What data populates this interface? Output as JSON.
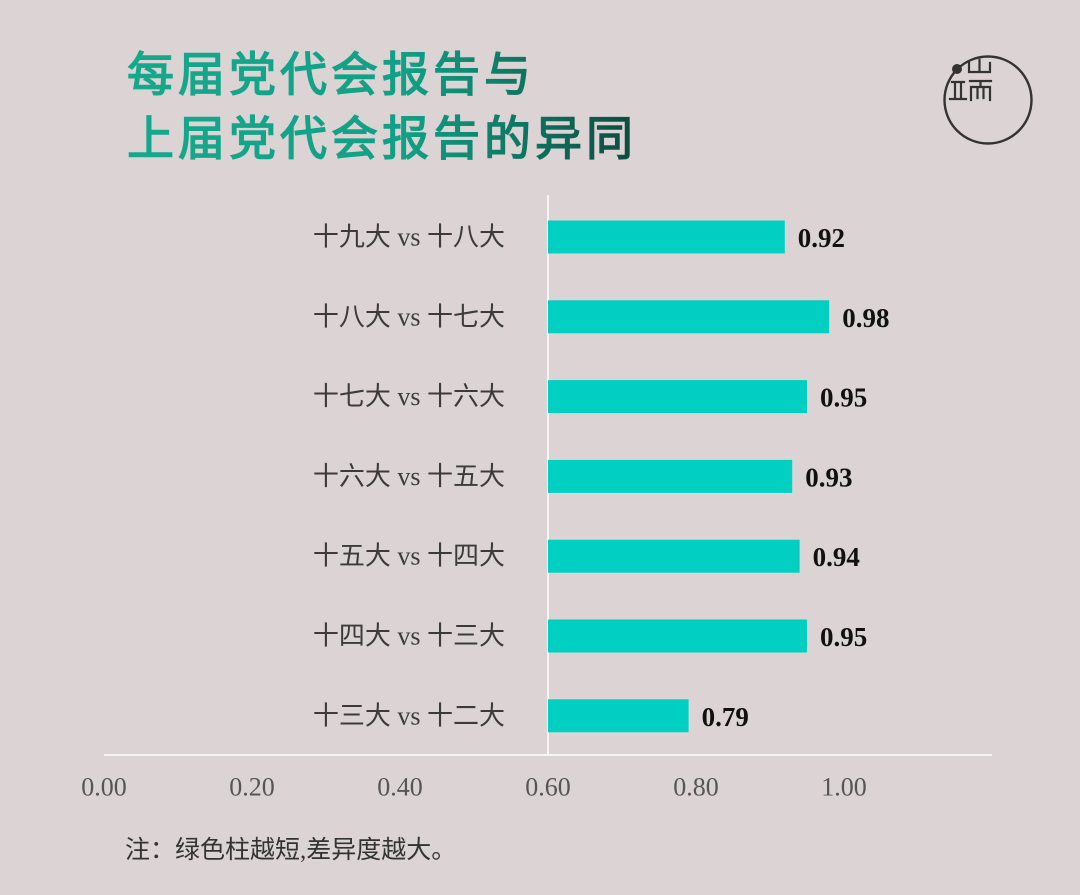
{
  "logo": {
    "text": "端"
  },
  "colors": {
    "background": "#dcd4d4",
    "bar": "#00cfc1",
    "axis_line": "#ffffff",
    "title_gradient": [
      "#15a98c",
      "#0c4a3e"
    ],
    "label_text": "#3b3b3b",
    "value_text": "#111111"
  },
  "chart_data": {
    "type": "bar",
    "orientation": "horizontal",
    "title": "每届党代会报告与\n上届党代会报告的异同",
    "categories": [
      "十九大 vs 十八大",
      "十八大 vs 十七大",
      "十七大 vs 十六大",
      "十六大 vs 十五大",
      "十五大 vs 十四大",
      "十四大 vs 十三大",
      "十三大 vs 十二大"
    ],
    "values": [
      0.92,
      0.98,
      0.95,
      0.93,
      0.94,
      0.95,
      0.79
    ],
    "bar_start": 0.6,
    "x_ticks": [
      0,
      0.2,
      0.4,
      0.6,
      0.8,
      1.0
    ],
    "x_tick_labels": [
      "0.00",
      "0.20",
      "0.40",
      "0.60",
      "0.80",
      "1.00"
    ],
    "xlim": [
      0,
      1.2
    ],
    "grid": false,
    "note": "注：绿色柱越短,差异度越大。"
  }
}
